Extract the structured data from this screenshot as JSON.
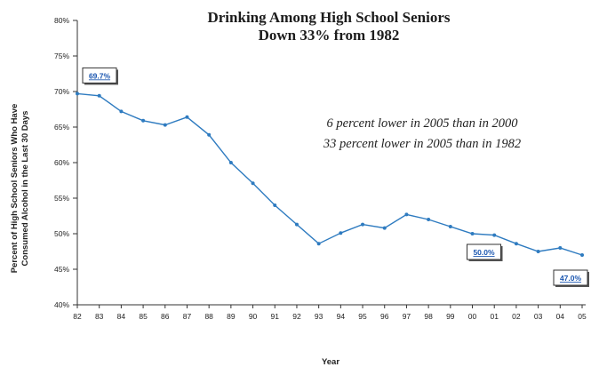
{
  "chart_data": {
    "type": "line",
    "title": "Drinking Among High School Seniors",
    "subtitle": "Down 33% from 1982",
    "xlabel": "Year",
    "ylabel_line1": "Percent of High School Seniors Who Have",
    "ylabel_line2": "Consumed Alcohol in the Last 30 Days",
    "ylim": [
      40,
      80
    ],
    "yticks": [
      40,
      45,
      50,
      55,
      60,
      65,
      70,
      75,
      80
    ],
    "ytick_labels": [
      "40%",
      "45%",
      "50%",
      "55%",
      "60%",
      "65%",
      "70%",
      "75%",
      "80%"
    ],
    "categories": [
      "82",
      "83",
      "84",
      "85",
      "86",
      "87",
      "88",
      "89",
      "90",
      "91",
      "92",
      "93",
      "94",
      "95",
      "96",
      "97",
      "98",
      "99",
      "00",
      "01",
      "02",
      "03",
      "04",
      "05"
    ],
    "values": [
      69.7,
      69.4,
      67.2,
      65.9,
      65.3,
      66.4,
      63.9,
      60.0,
      57.1,
      54.0,
      51.3,
      48.6,
      50.1,
      51.3,
      50.8,
      52.7,
      52.0,
      51.0,
      50.0,
      49.8,
      48.6,
      47.5,
      48.0,
      47.0
    ],
    "series_color": "#2e7bc0",
    "grid": false,
    "annotations": [
      {
        "text": "69.7%",
        "index": 0
      },
      {
        "text": "50.0%",
        "index": 18
      },
      {
        "text": "47.0%",
        "index": 23
      }
    ],
    "notes": [
      "6 percent lower in 2005 than in 2000",
      "33 percent lower in 2005 than in 1982"
    ]
  }
}
